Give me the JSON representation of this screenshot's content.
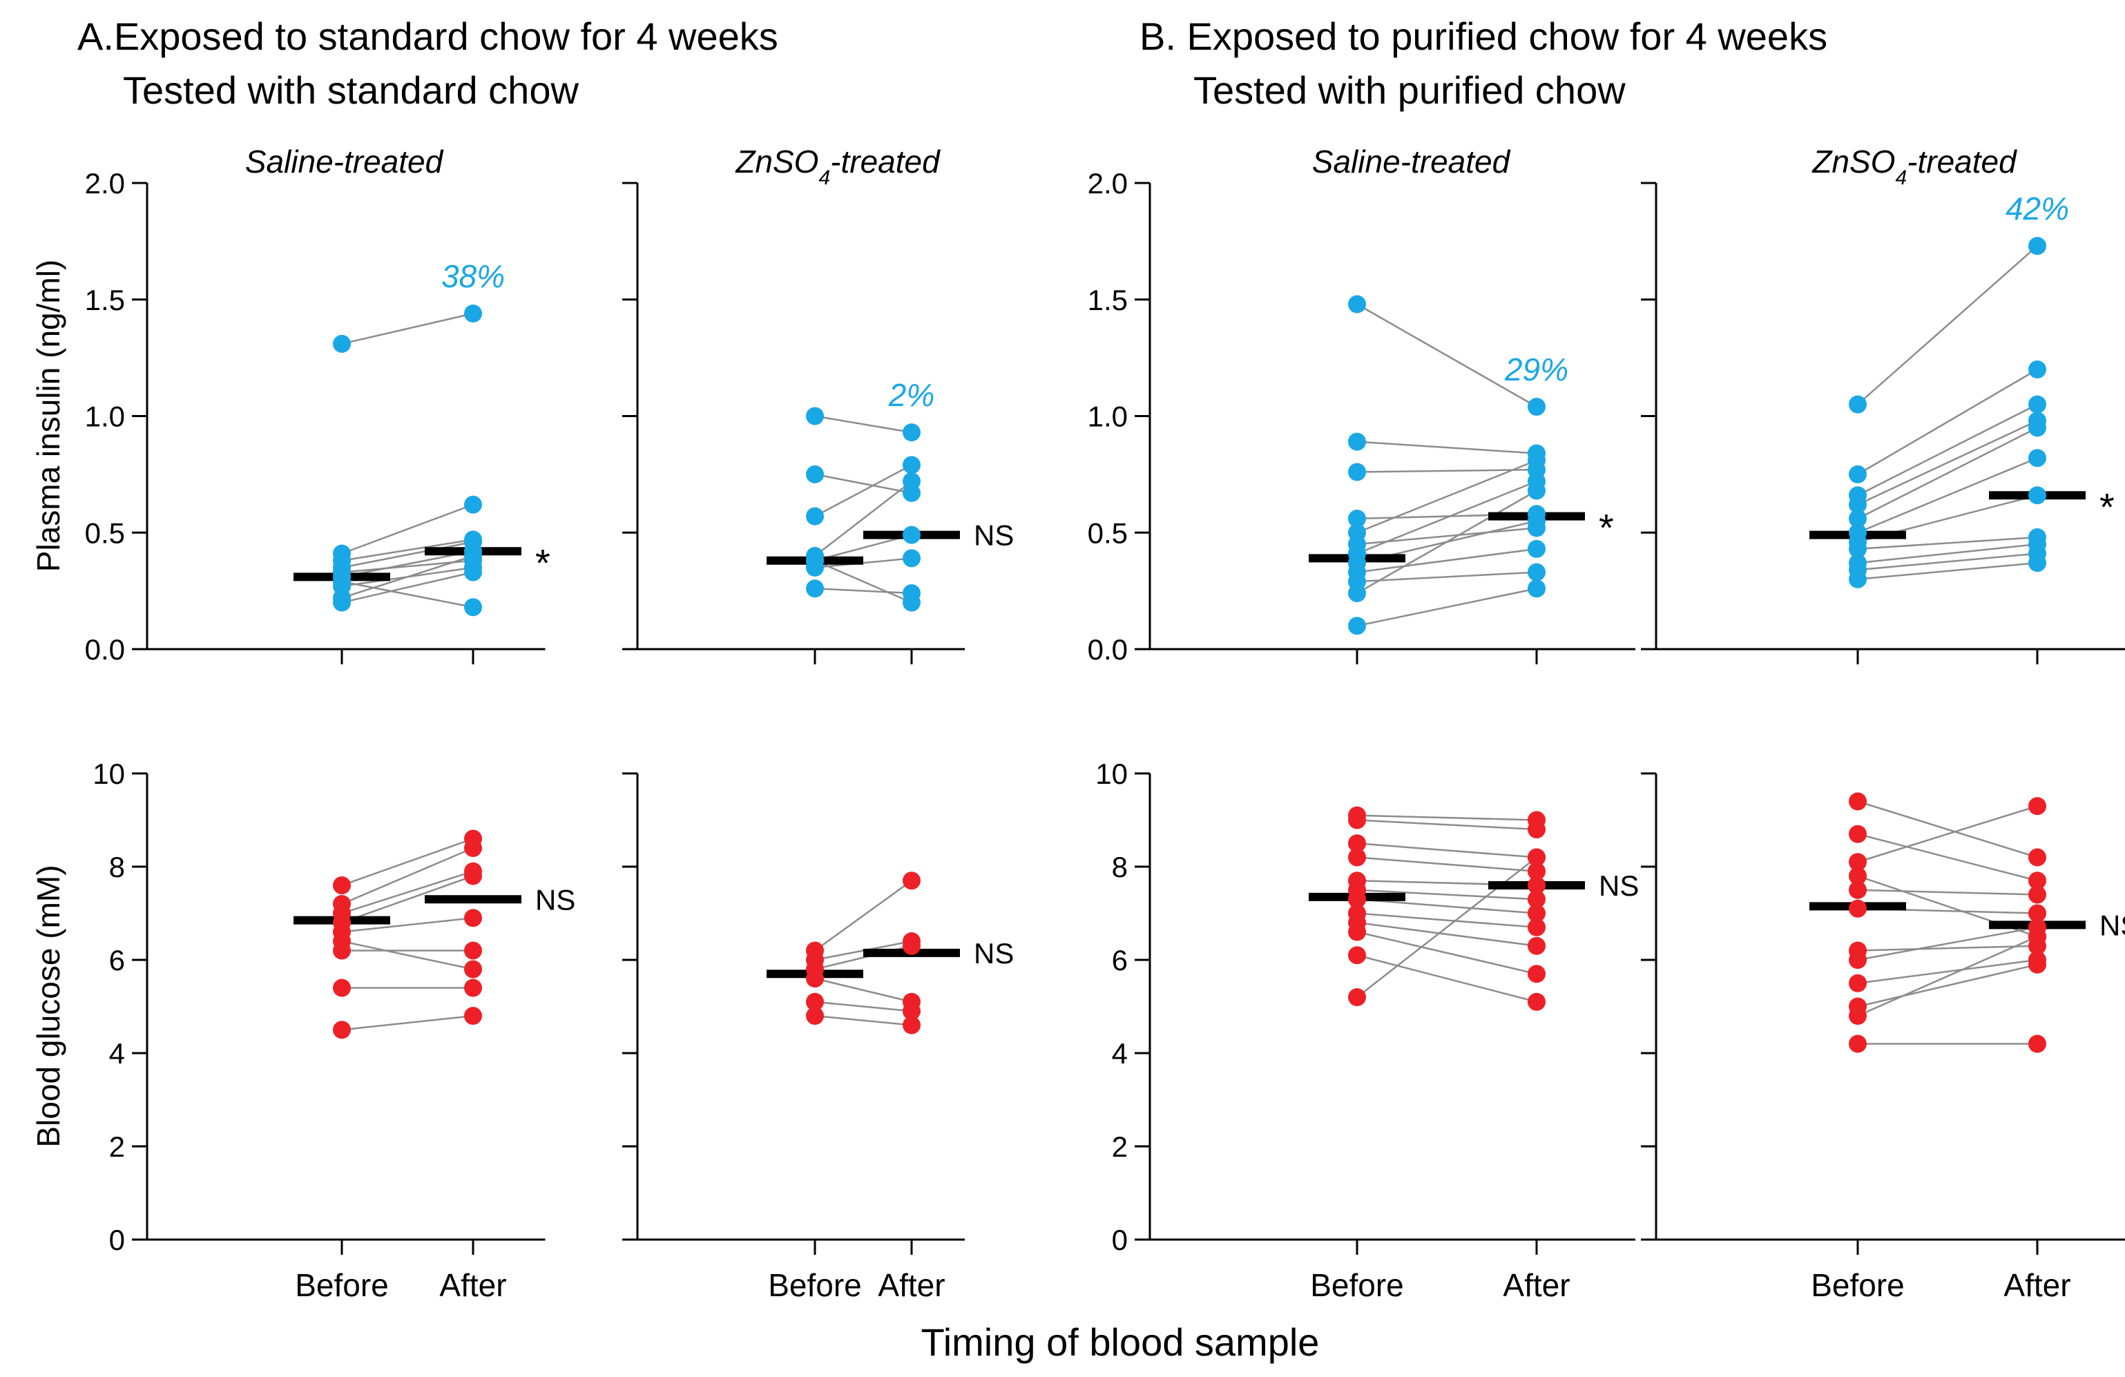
{
  "headings": {
    "a_line1": "A.Exposed to standard chow for 4 weeks",
    "a_line2": "Tested with standard chow",
    "b_line1": "B. Exposed to purified chow for 4 weeks",
    "b_line2": "Tested with purified chow",
    "x_title": "Timing of blood sample"
  },
  "subtitles": {
    "saline": "Saline-treated",
    "zn_prefix": "ZnSO",
    "zn_sub": "4",
    "zn_suffix": "-treated"
  },
  "colors": {
    "insulin": "#1aa7e6",
    "glucose": "#ee2027",
    "lines": "#8c8c8c",
    "median": "#000000"
  },
  "chart_data": [
    {
      "type": "scatter",
      "panel": "A-saline-insulin",
      "title": "Saline-treated",
      "categories": [
        "Before",
        "After"
      ],
      "ylabel": "Plasma insulin (ng/ml)",
      "ylim": [
        0,
        2
      ],
      "yticks": [
        0.0,
        0.5,
        1.0,
        1.5,
        2.0
      ],
      "ytick_decimals": 1,
      "pairs": [
        [
          1.31,
          1.44
        ],
        [
          0.41,
          0.62
        ],
        [
          0.38,
          0.47
        ],
        [
          0.35,
          0.46
        ],
        [
          0.33,
          0.38
        ],
        [
          0.31,
          0.42
        ],
        [
          0.29,
          0.18
        ],
        [
          0.27,
          0.35
        ],
        [
          0.22,
          0.4
        ],
        [
          0.2,
          0.33
        ]
      ],
      "median": [
        0.31,
        0.42
      ],
      "percent_label": "38%",
      "significance": "*"
    },
    {
      "type": "scatter",
      "panel": "A-zn-insulin",
      "title": "ZnSO4-treated",
      "categories": [
        "Before",
        "After"
      ],
      "ylabel": "Plasma insulin (ng/ml)",
      "ylim": [
        0,
        2
      ],
      "yticks": [
        0.0,
        0.5,
        1.0,
        1.5,
        2.0
      ],
      "ytick_decimals": 1,
      "pairs": [
        [
          1.0,
          0.93
        ],
        [
          0.75,
          0.67
        ],
        [
          0.57,
          0.79
        ],
        [
          0.4,
          0.72
        ],
        [
          0.38,
          0.49
        ],
        [
          0.35,
          0.39
        ],
        [
          0.26,
          0.24
        ],
        [
          0.38,
          0.2
        ]
      ],
      "median": [
        0.38,
        0.49
      ],
      "percent_label": "2%",
      "significance": "NS"
    },
    {
      "type": "scatter",
      "panel": "B-saline-insulin",
      "title": "Saline-treated",
      "categories": [
        "Before",
        "After"
      ],
      "ylabel": "Plasma insulin (ng/ml)",
      "ylim": [
        0,
        2
      ],
      "yticks": [
        0.0,
        0.5,
        1.0,
        1.5,
        2.0
      ],
      "ytick_decimals": 1,
      "pairs": [
        [
          1.48,
          1.04
        ],
        [
          0.89,
          0.84
        ],
        [
          0.76,
          0.77
        ],
        [
          0.56,
          0.58
        ],
        [
          0.5,
          0.81
        ],
        [
          0.45,
          0.52
        ],
        [
          0.41,
          0.72
        ],
        [
          0.37,
          0.55
        ],
        [
          0.33,
          0.43
        ],
        [
          0.29,
          0.33
        ],
        [
          0.24,
          0.68
        ],
        [
          0.1,
          0.26
        ]
      ],
      "median": [
        0.39,
        0.57
      ],
      "percent_label": "29%",
      "significance": "*"
    },
    {
      "type": "scatter",
      "panel": "B-zn-insulin",
      "title": "ZnSO4-treated",
      "categories": [
        "Before",
        "After"
      ],
      "ylabel": "Plasma insulin (ng/ml)",
      "ylim": [
        0,
        2
      ],
      "yticks": [
        0.0,
        0.5,
        1.0,
        1.5,
        2.0
      ],
      "ytick_decimals": 1,
      "pairs": [
        [
          1.05,
          1.73
        ],
        [
          0.75,
          1.2
        ],
        [
          0.66,
          1.05
        ],
        [
          0.62,
          0.98
        ],
        [
          0.56,
          0.95
        ],
        [
          0.5,
          0.82
        ],
        [
          0.46,
          0.66
        ],
        [
          0.43,
          0.48
        ],
        [
          0.37,
          0.45
        ],
        [
          0.34,
          0.41
        ],
        [
          0.3,
          0.37
        ]
      ],
      "median": [
        0.49,
        0.66
      ],
      "percent_label": "42%",
      "significance": "*"
    },
    {
      "type": "scatter",
      "panel": "A-saline-glucose",
      "categories": [
        "Before",
        "After"
      ],
      "ylabel": "Blood glucose (mM)",
      "ylim": [
        0,
        10
      ],
      "yticks": [
        0,
        2,
        4,
        6,
        8,
        10
      ],
      "ytick_decimals": 0,
      "pairs": [
        [
          7.6,
          8.6
        ],
        [
          7.2,
          8.4
        ],
        [
          7.0,
          7.9
        ],
        [
          6.8,
          7.8
        ],
        [
          6.6,
          6.9
        ],
        [
          6.4,
          5.8
        ],
        [
          6.2,
          6.2
        ],
        [
          5.4,
          5.4
        ],
        [
          4.5,
          4.8
        ]
      ],
      "median": [
        6.85,
        7.3
      ],
      "significance": "NS"
    },
    {
      "type": "scatter",
      "panel": "A-zn-glucose",
      "categories": [
        "Before",
        "After"
      ],
      "ylabel": "Blood glucose (mM)",
      "ylim": [
        0,
        10
      ],
      "yticks": [
        0,
        2,
        4,
        6,
        8,
        10
      ],
      "ytick_decimals": 0,
      "pairs": [
        [
          6.2,
          7.7
        ],
        [
          6.0,
          6.4
        ],
        [
          5.8,
          6.3
        ],
        [
          5.6,
          5.1
        ],
        [
          5.1,
          4.9
        ],
        [
          4.8,
          4.6
        ]
      ],
      "median": [
        5.7,
        6.15
      ],
      "significance": "NS"
    },
    {
      "type": "scatter",
      "panel": "B-saline-glucose",
      "categories": [
        "Before",
        "After"
      ],
      "ylabel": "Blood glucose (mM)",
      "ylim": [
        0,
        10
      ],
      "yticks": [
        0,
        2,
        4,
        6,
        8,
        10
      ],
      "ytick_decimals": 0,
      "pairs": [
        [
          9.1,
          9.0
        ],
        [
          9.0,
          8.8
        ],
        [
          8.5,
          8.2
        ],
        [
          8.2,
          7.9
        ],
        [
          7.7,
          7.6
        ],
        [
          7.5,
          7.3
        ],
        [
          7.3,
          7.0
        ],
        [
          7.0,
          6.7
        ],
        [
          6.8,
          6.3
        ],
        [
          6.6,
          5.7
        ],
        [
          6.1,
          5.1
        ],
        [
          5.2,
          8.2
        ]
      ],
      "median": [
        7.35,
        7.6
      ],
      "significance": "NS"
    },
    {
      "type": "scatter",
      "panel": "B-zn-glucose",
      "categories": [
        "Before",
        "After"
      ],
      "ylabel": "Blood glucose (mM)",
      "ylim": [
        0,
        10
      ],
      "yticks": [
        0,
        2,
        4,
        6,
        8,
        10
      ],
      "ytick_decimals": 0,
      "pairs": [
        [
          9.4,
          8.2
        ],
        [
          8.7,
          7.7
        ],
        [
          8.1,
          9.3
        ],
        [
          7.8,
          6.5
        ],
        [
          7.5,
          7.4
        ],
        [
          7.1,
          7.0
        ],
        [
          6.2,
          6.3
        ],
        [
          6.0,
          6.7
        ],
        [
          5.5,
          6.0
        ],
        [
          5.0,
          5.9
        ],
        [
          4.8,
          6.5
        ],
        [
          4.2,
          4.2
        ]
      ],
      "median": [
        7.15,
        6.75
      ],
      "significance": "NS"
    }
  ]
}
